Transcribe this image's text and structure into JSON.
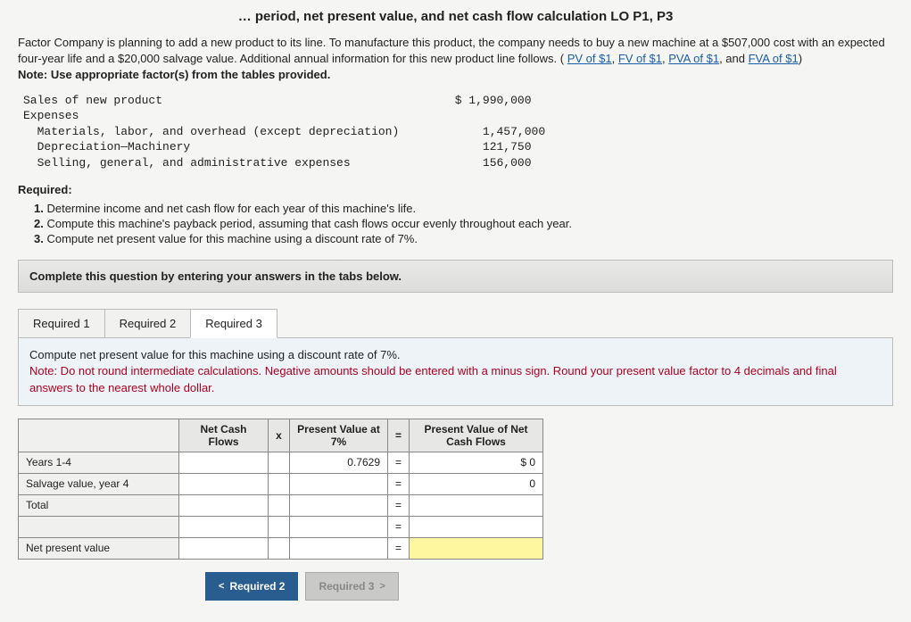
{
  "title_partial": "… period, net present value, and net cash flow calculation LO P1, P3",
  "intro": {
    "text1": "Factor Company is planning to add a new product to its line. To manufacture this product, the company needs to buy a new machine at a $507,000 cost with an expected four-year life and a $20,000 salvage value. Additional annual information for this new product line follows. (",
    "link1": "PV of $1",
    "sep1": ", ",
    "link2": "FV of $1",
    "sep2": ", ",
    "link3": "PVA of $1",
    "sep3": ", and ",
    "link4": "FVA of $1",
    "close": ")",
    "note": "Note: Use appropriate factor(s) from the tables provided."
  },
  "fin": {
    "l1": "Sales of new product",
    "l2": "Expenses",
    "l3": "  Materials, labor, and overhead (except depreciation)",
    "l4": "  Depreciation—Machinery",
    "l5": "  Selling, general, and administrative expenses",
    "v1": "$ 1,990,000",
    "v3": "1,457,000",
    "v4": "121,750",
    "v5": "156,000"
  },
  "required_head": "Required:",
  "reqs": {
    "r1": "Determine income and net cash flow for each year of this machine's life.",
    "r2": "Compute this machine's payback period, assuming that cash flows occur evenly throughout each year.",
    "r3": "Compute net present value for this machine using a discount rate of 7%."
  },
  "complete_bar": "Complete this question by entering your answers in the tabs below.",
  "tabs": {
    "t1": "Required 1",
    "t2": "Required 2",
    "t3": "Required 3"
  },
  "instr": {
    "line1": "Compute net present value for this machine using a discount rate of 7%.",
    "line2": "Note: Do not round intermediate calculations. Negative amounts should be entered with a minus sign. Round your present value factor to 4 decimals and final answers to the nearest whole dollar."
  },
  "table": {
    "h_ncf": "Net Cash Flows",
    "h_x": "x",
    "h_pvf": "Present Value at 7%",
    "h_eq": "=",
    "h_pvn": "Present Value of Net Cash Flows",
    "r1_label": "Years 1-4",
    "r1_pvf": "0.7629",
    "r1_pvn": "$                     0",
    "r2_label": "Salvage value, year 4",
    "r2_pvn": "0",
    "r3_label": "Total",
    "r5_label": "Net present value"
  },
  "nav": {
    "prev": "Required 2",
    "next": "Required 3"
  }
}
